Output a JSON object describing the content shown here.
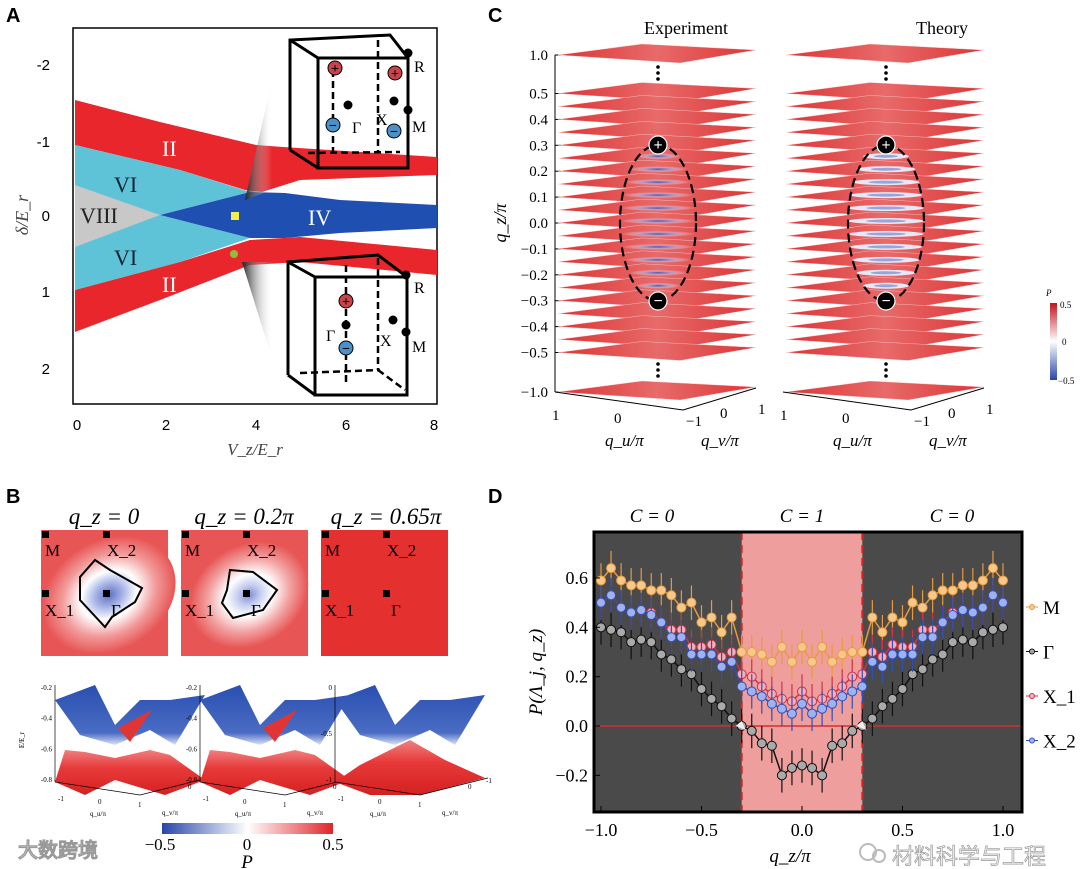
{
  "panelA": {
    "letter": "A",
    "xlabel": "V_z/E_r",
    "ylabel": "δ/E_r",
    "xticks": [
      "0",
      "2",
      "4",
      "6",
      "8"
    ],
    "yticks": [
      "-2",
      "-1",
      "0",
      "1",
      "2"
    ],
    "regions": [
      "II",
      "VI",
      "VIII",
      "IV",
      "VI",
      "II"
    ],
    "inset_top": {
      "plus": "+",
      "minus": "−",
      "labels": [
        "R",
        "Γ",
        "X",
        "M"
      ]
    },
    "inset_bottom": {
      "plus": "+",
      "minus": "−",
      "labels": [
        "R",
        "Γ",
        "X",
        "M"
      ]
    },
    "colors": {
      "II": "#e8262b",
      "VI": "#5fc3d8",
      "VIII": "#c8c8c8",
      "IV": "#1f4fb0"
    }
  },
  "panelB": {
    "letter": "B",
    "titles": [
      "q_z = 0",
      "q_z = 0.2π",
      "q_z = 0.65π"
    ],
    "points": [
      "M",
      "X_2",
      "X_1",
      "Γ"
    ],
    "surface_axes": [
      {
        "yticks": [
          "-0.2",
          "-0.4",
          "-0.6",
          "-0.8"
        ]
      },
      {
        "yticks": [
          "-0.2",
          "-0.4",
          "-0.6",
          "-0.8"
        ]
      },
      {
        "yticks": [
          "0",
          "-0.5",
          "-1"
        ]
      }
    ],
    "surface_ylabel": "E/E_r",
    "surface_xticks": [
      "-1",
      "0",
      "1"
    ],
    "surface_vticks": [
      "0",
      "-1"
    ],
    "surface_xlabel": "q_u/π",
    "surface_vlabel": "q_v/π",
    "colorbar": {
      "min": "−0.5",
      "mid": "0",
      "max": "0.5",
      "label": "P"
    },
    "watermark": "大数跨境"
  },
  "panelC": {
    "letter": "C",
    "titles": [
      "Experiment",
      "Theory"
    ],
    "ylabel": "q_z/π",
    "yticks": [
      "1.0",
      "0.5",
      "0.4",
      "0.3",
      "0.2",
      "0.1",
      "0.0",
      "−0.1",
      "−0.2",
      "−0.3",
      "−0.4",
      "−0.5",
      "−1.0"
    ],
    "u_ticks": [
      "1",
      "0",
      "−1"
    ],
    "v_ticks": [
      "0",
      "1"
    ],
    "ulabel": "q_u/π",
    "vlabel": "q_v/π",
    "plus": "+",
    "minus": "−",
    "colorbar": {
      "label": "P",
      "max": "0.5",
      "mid": "0",
      "min": "−0.5"
    }
  },
  "chart_data": {
    "type": "line",
    "letter": "D",
    "title": "",
    "xlabel": "q_z/π",
    "ylabel": "P(Λ_j, q_z)",
    "xlim": [
      -1.05,
      1.05
    ],
    "ylim": [
      -0.3,
      0.79
    ],
    "xticks": [
      "−1.0",
      "−0.5",
      "0.0",
      "0.5",
      "1.0"
    ],
    "xtick_values": [
      -1,
      -0.5,
      0,
      0.5,
      1
    ],
    "yticks": [
      "0.6",
      "0.4",
      "0.2",
      "0.0",
      "−0.2"
    ],
    "ytick_values": [
      0.6,
      0.4,
      0.2,
      0,
      -0.2
    ],
    "phase_labels": [
      "C = 0",
      "C = 1",
      "C = 0"
    ],
    "shaded_region": [
      -0.3,
      0.3
    ],
    "error": 0.07,
    "x_step": 0.05,
    "series": [
      {
        "name": "M",
        "color": "#e89a3c",
        "fill": "#f6c98a",
        "half": [
          0.59,
          0.64,
          0.59,
          0.57,
          0.57,
          0.55,
          0.55,
          0.53,
          0.48,
          0.5,
          0.42,
          0.44,
          0.38,
          0.44,
          0.3,
          0.3,
          0.29,
          0.26,
          0.32,
          0.26,
          0.32
        ]
      },
      {
        "name": "Γ",
        "color": "#111111",
        "fill": "#aaaaaa",
        "half": [
          0.4,
          0.39,
          0.38,
          0.34,
          0.35,
          0.34,
          0.29,
          0.27,
          0.23,
          0.21,
          0.15,
          0.11,
          0.08,
          0.03,
          0.0,
          -0.02,
          -0.07,
          -0.08,
          -0.2,
          -0.17,
          -0.16
        ]
      },
      {
        "name": "X_1",
        "color": "#d0304a",
        "fill": "#f3b0b8",
        "half": [
          0.5,
          0.53,
          0.48,
          0.46,
          0.47,
          0.46,
          0.42,
          0.39,
          0.39,
          0.32,
          0.32,
          0.33,
          0.28,
          0.3,
          0.21,
          0.2,
          0.16,
          0.13,
          0.11,
          0.1,
          0.14
        ]
      },
      {
        "name": "X_2",
        "color": "#2f4fb8",
        "fill": "#9fb2f0",
        "half": [
          0.5,
          0.53,
          0.48,
          0.46,
          0.47,
          0.45,
          0.42,
          0.36,
          0.36,
          0.29,
          0.29,
          0.29,
          0.24,
          0.26,
          0.16,
          0.14,
          0.12,
          0.09,
          0.07,
          0.05,
          0.09
        ]
      }
    ],
    "legend_position": "right",
    "watermark": "材料科学与工程"
  }
}
